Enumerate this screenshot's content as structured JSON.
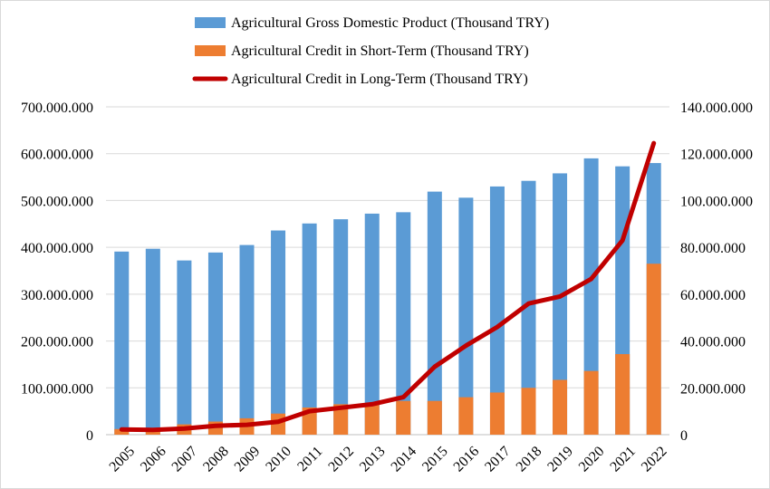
{
  "chart_data": {
    "type": "bar",
    "categories": [
      "2005",
      "2006",
      "2007",
      "2008",
      "2009",
      "2010",
      "2011",
      "2012",
      "2013",
      "2014",
      "2015",
      "2016",
      "2017",
      "2018",
      "2019",
      "2020",
      "2021",
      "2022"
    ],
    "series": [
      {
        "name": "Agricultural Gross Domestic Product (Thousand TRY)",
        "kind": "bar",
        "axis": "left",
        "color": "#5b9bd5",
        "values": [
          391000000,
          397000000,
          372000000,
          389000000,
          405000000,
          436000000,
          451000000,
          460000000,
          472000000,
          475000000,
          519000000,
          506000000,
          530000000,
          542000000,
          558000000,
          590000000,
          573000000,
          580000000
        ]
      },
      {
        "name": "Agricultural Credit in Short-Term (Thousand TRY)",
        "kind": "bar",
        "axis": "left",
        "color": "#ed7d31",
        "values": [
          12000000,
          14000000,
          22000000,
          28000000,
          35000000,
          45000000,
          58000000,
          65000000,
          68000000,
          72000000,
          72000000,
          80000000,
          90000000,
          100000000,
          117000000,
          136000000,
          172000000,
          365000000
        ]
      },
      {
        "name": "Agricultural Credit in Long-Term (Thousand TRY)",
        "kind": "line",
        "axis": "right",
        "color": "#c00000",
        "values": [
          2200000,
          2000000,
          2600000,
          3800000,
          4200000,
          5500000,
          10000000,
          11500000,
          13000000,
          16000000,
          29000000,
          38000000,
          46000000,
          56000000,
          59000000,
          66500000,
          83000000,
          124500000
        ]
      }
    ],
    "left_axis": {
      "ylim": [
        0,
        700000000
      ],
      "ticks": [
        0,
        100000000,
        200000000,
        300000000,
        400000000,
        500000000,
        600000000,
        700000000
      ],
      "tick_labels": [
        "0",
        "100.000.000",
        "200.000.000",
        "300.000.000",
        "400.000.000",
        "500.000.000",
        "600.000.000",
        "700.000.000"
      ]
    },
    "right_axis": {
      "ylim": [
        0,
        140000000
      ],
      "ticks": [
        0,
        20000000,
        40000000,
        60000000,
        80000000,
        100000000,
        120000000,
        140000000
      ],
      "tick_labels": [
        "0",
        "20.000.000",
        "40.000.000",
        "60.000.000",
        "80.000.000",
        "100.000.000",
        "120.000.000",
        "140.000.000"
      ]
    },
    "grid": true,
    "legend_position": "top",
    "title": "",
    "xlabel": "",
    "ylabel": ""
  }
}
